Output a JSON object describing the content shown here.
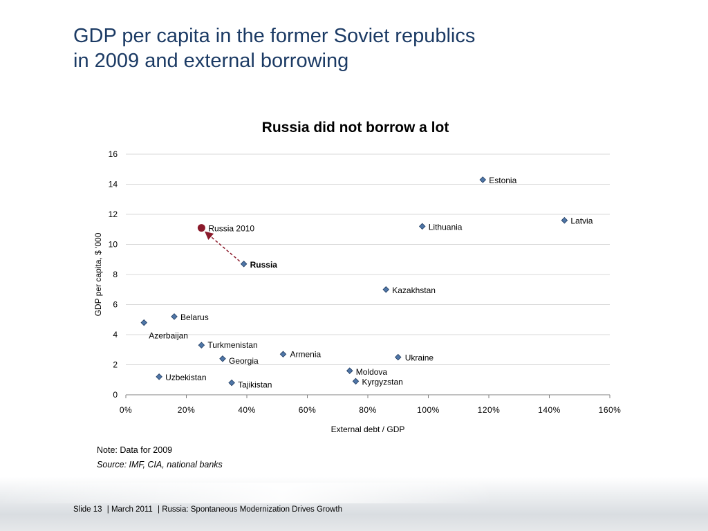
{
  "slide": {
    "title_line1": "GDP per capita in the former Soviet republics",
    "title_line2": "in 2009 and external borrowing",
    "note": "Note: Data for 2009",
    "source": "Source: IMF, CIA, national banks",
    "footer": {
      "slide_label": "Slide 13",
      "date": "| March 2011",
      "topic": "| Russia: Spontaneous Modernization Drives Growth"
    }
  },
  "chart_data": {
    "type": "scatter",
    "title": "Russia did not borrow a lot",
    "xlabel": "External debt / GDP",
    "ylabel": "GDP per capita, $ '000",
    "xlim": [
      0,
      160
    ],
    "ylim": [
      0,
      16
    ],
    "x_ticks": [
      "0%",
      "20%",
      "40%",
      "60%",
      "80%",
      "100%",
      "120%",
      "140%",
      "160%"
    ],
    "y_ticks": [
      "0",
      "2",
      "4",
      "6",
      "8",
      "10",
      "12",
      "14",
      "16"
    ],
    "grid": "horizontal",
    "colors": {
      "points": "#4f76a7",
      "point_edge": "#1f3a5f",
      "highlight": "#8b1a2b",
      "arrow": "#8b1a2b",
      "grid": "#d9d9d9"
    },
    "points": [
      {
        "label": "Estonia",
        "x": 118,
        "y": 14.3
      },
      {
        "label": "Latvia",
        "x": 145,
        "y": 11.6
      },
      {
        "label": "Lithuania",
        "x": 98,
        "y": 11.2
      },
      {
        "label": "Kazakhstan",
        "x": 86,
        "y": 7.0
      },
      {
        "label": "Russia",
        "x": 39,
        "y": 8.7,
        "bold": true
      },
      {
        "label": "Belarus",
        "x": 16,
        "y": 5.2
      },
      {
        "label": "Azerbaijan",
        "x": 6,
        "y": 4.8
      },
      {
        "label": "Turkmenistan",
        "x": 25,
        "y": 3.3
      },
      {
        "label": "Georgia",
        "x": 32,
        "y": 2.4
      },
      {
        "label": "Armenia",
        "x": 52,
        "y": 2.7
      },
      {
        "label": "Ukraine",
        "x": 90,
        "y": 2.5
      },
      {
        "label": "Moldova",
        "x": 74,
        "y": 1.6
      },
      {
        "label": "Kyrgyzstan",
        "x": 76,
        "y": 0.9
      },
      {
        "label": "Uzbekistan",
        "x": 11,
        "y": 1.2
      },
      {
        "label": "Tajikistan",
        "x": 35,
        "y": 0.8
      }
    ],
    "highlight_point": {
      "label": "Russia 2010",
      "x": 25,
      "y": 11.1
    }
  }
}
